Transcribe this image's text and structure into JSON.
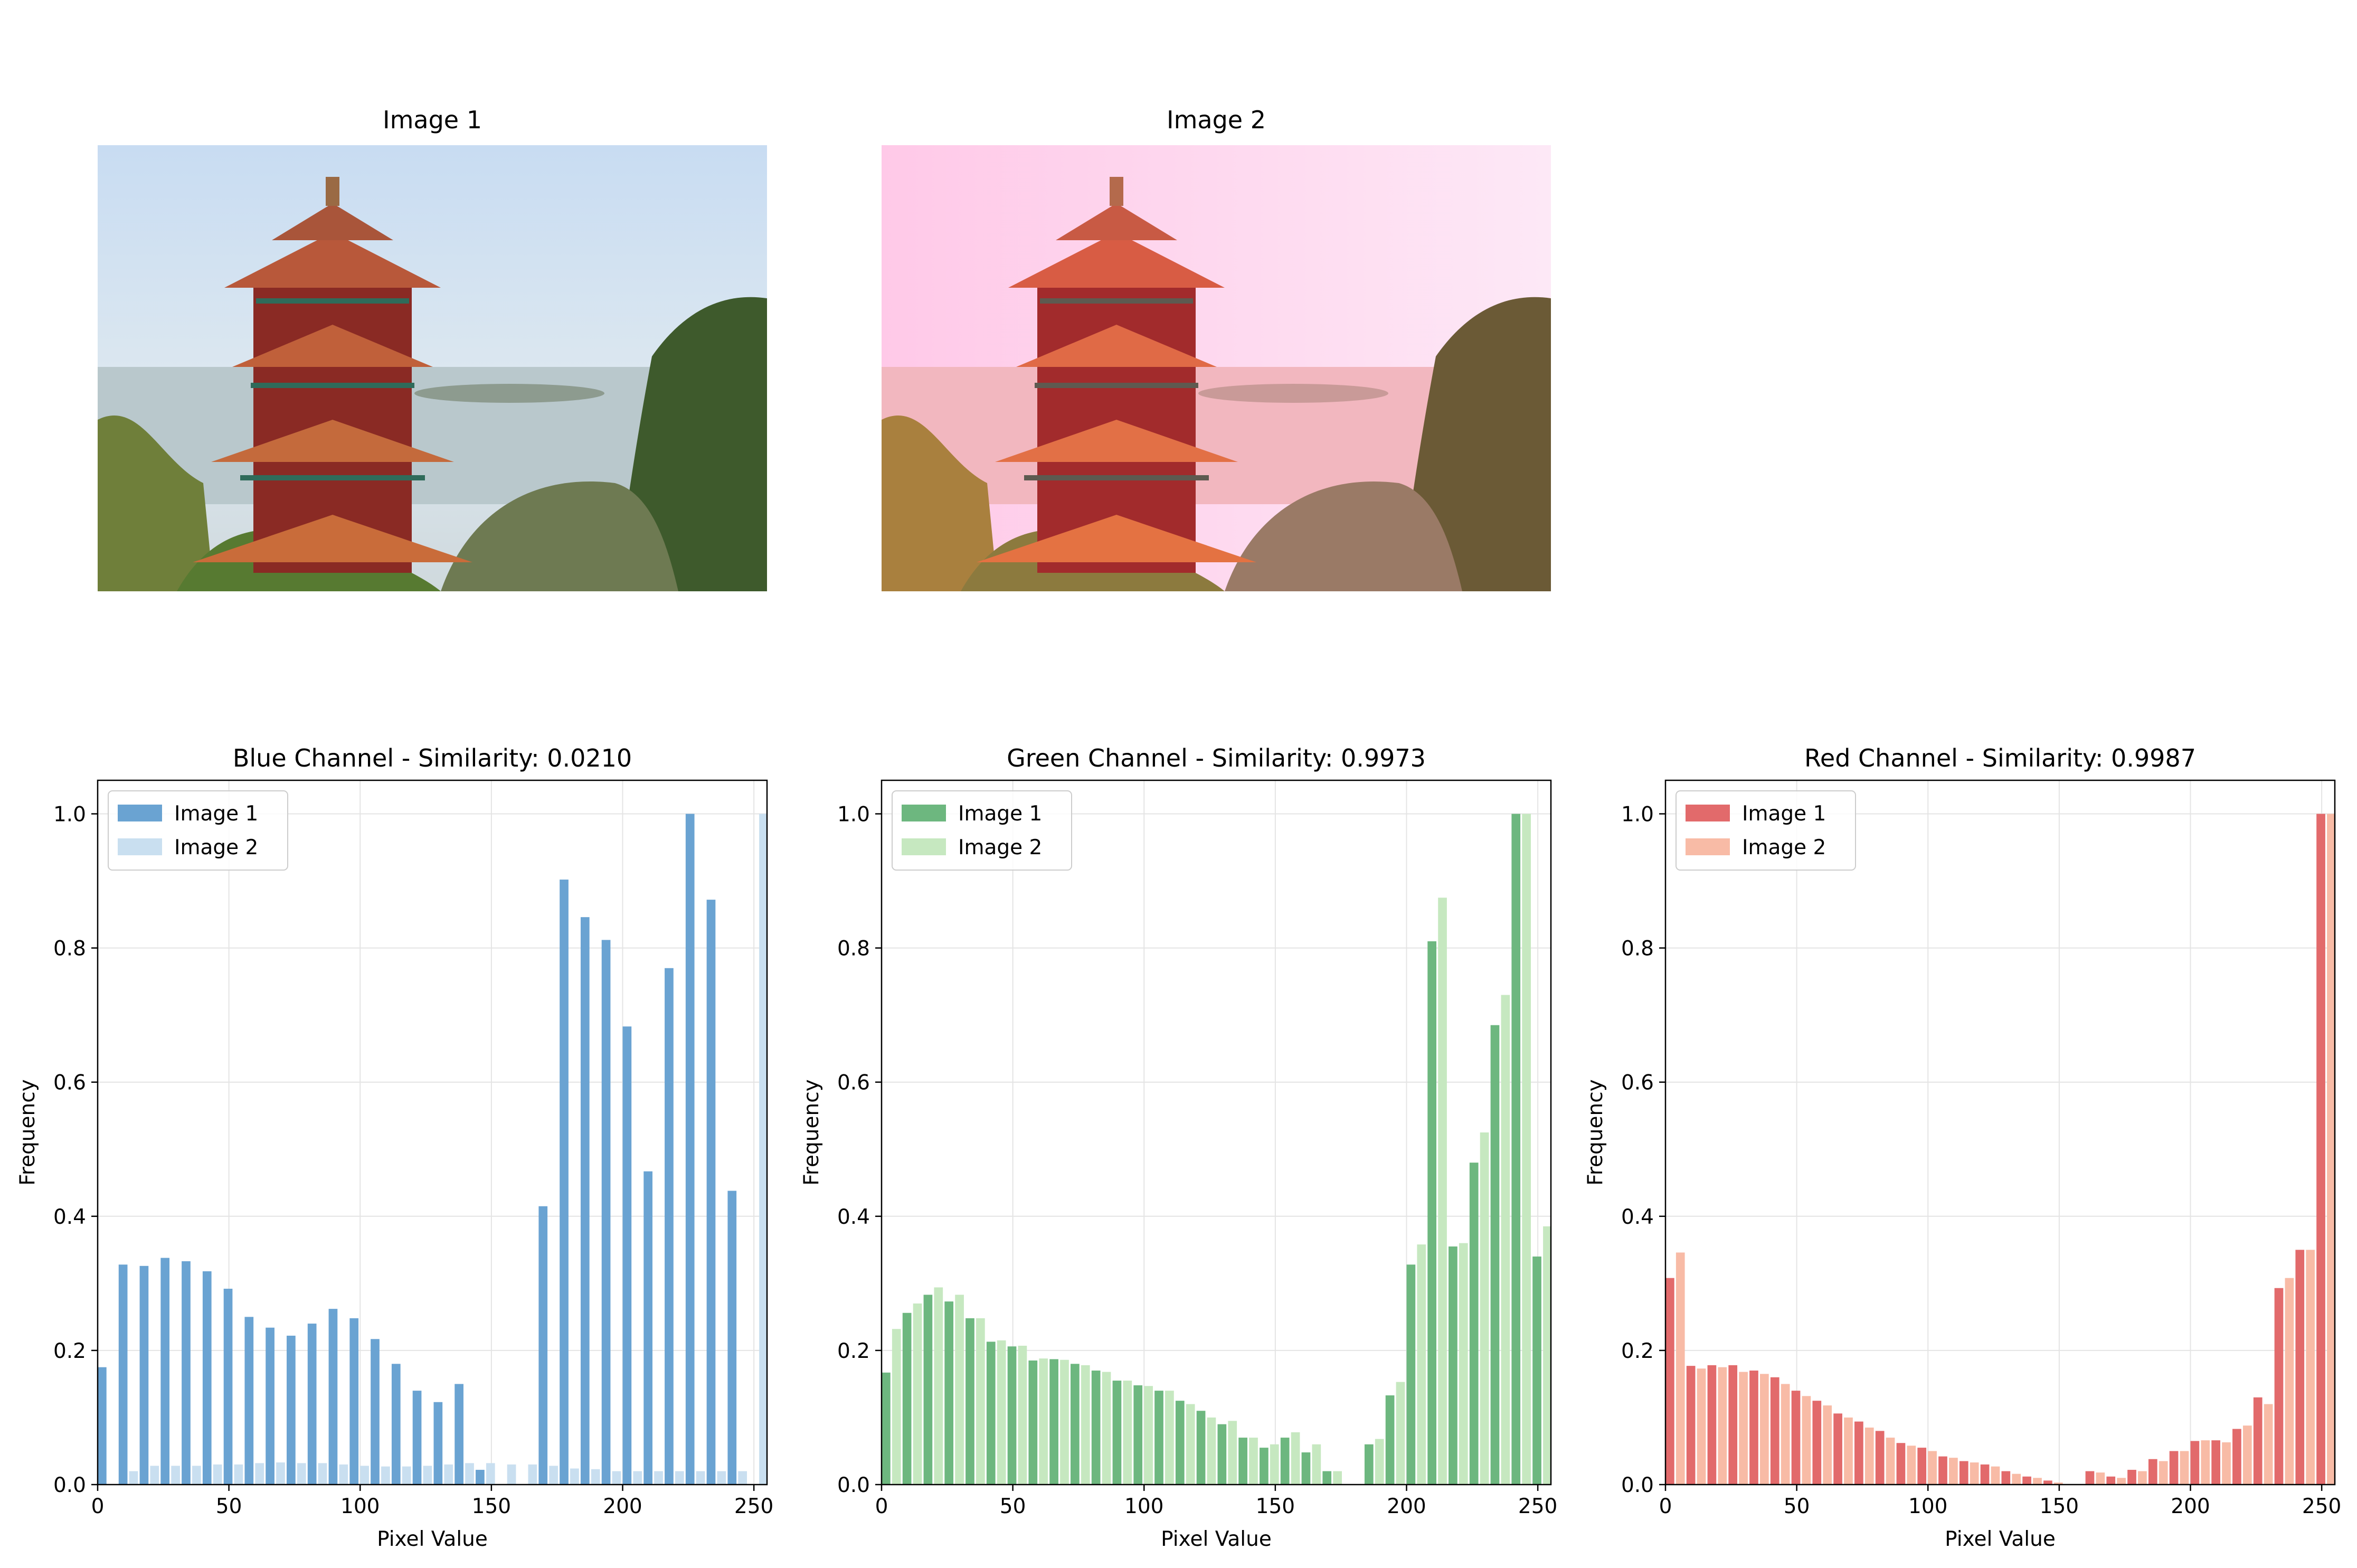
{
  "images": [
    {
      "title": "Image 1",
      "tint": "#d6e6f7"
    },
    {
      "title": "Image 2",
      "tint": "#ffc9e3"
    }
  ],
  "colors": {
    "blue_1": "#6aa3d2",
    "blue_2": "#c9dff0",
    "green_1": "#6db77f",
    "green_2": "#c6e8c0",
    "red_1": "#e26a6b",
    "red_2": "#f8bba6"
  },
  "chart_data": [
    {
      "type": "bar",
      "title": "Blue Channel - Similarity: 0.0210",
      "xlabel": "Pixel Value",
      "ylabel": "Frequency",
      "xlim": [
        0,
        255
      ],
      "ylim": [
        0,
        1.05
      ],
      "xticks": [
        "0",
        "50",
        "100",
        "150",
        "200",
        "250"
      ],
      "yticks": [
        "0.0",
        "0.2",
        "0.4",
        "0.6",
        "0.8",
        "1.0"
      ],
      "grid": true,
      "legend": "upper-left",
      "bin_width": 8,
      "x": [
        0,
        8,
        16,
        24,
        32,
        40,
        48,
        56,
        64,
        72,
        80,
        88,
        96,
        104,
        112,
        120,
        128,
        136,
        144,
        152,
        160,
        168,
        176,
        184,
        192,
        200,
        208,
        216,
        224,
        232,
        240,
        248
      ],
      "series": [
        {
          "name": "Image 1",
          "color": "#6aa3d2",
          "values": [
            0.175,
            0.328,
            0.326,
            0.338,
            0.333,
            0.318,
            0.292,
            0.25,
            0.234,
            0.222,
            0.24,
            0.262,
            0.248,
            0.217,
            0.18,
            0.14,
            0.123,
            0.15,
            0.022,
            0,
            0,
            0.415,
            0.902,
            0.846,
            0.812,
            0.683,
            0.467,
            0.77,
            1.0,
            0.872,
            0.438,
            0
          ]
        },
        {
          "name": "Image 2",
          "color": "#c9dff0",
          "values": [
            0,
            0.02,
            0.028,
            0.028,
            0.028,
            0.03,
            0.03,
            0.032,
            0.033,
            0.032,
            0.032,
            0.03,
            0.028,
            0.027,
            0.027,
            0.028,
            0.03,
            0.032,
            0.032,
            0.03,
            0.03,
            0.028,
            0.024,
            0.023,
            0.02,
            0.02,
            0.02,
            0.02,
            0.02,
            0.02,
            0.02,
            1.0
          ]
        }
      ]
    },
    {
      "type": "bar",
      "title": "Green Channel - Similarity: 0.9973",
      "xlabel": "Pixel Value",
      "ylabel": "Frequency",
      "xlim": [
        0,
        255
      ],
      "ylim": [
        0,
        1.05
      ],
      "xticks": [
        "0",
        "50",
        "100",
        "150",
        "200",
        "250"
      ],
      "yticks": [
        "0.0",
        "0.2",
        "0.4",
        "0.6",
        "0.8",
        "1.0"
      ],
      "grid": true,
      "legend": "upper-left",
      "bin_width": 8,
      "x": [
        0,
        8,
        16,
        24,
        32,
        40,
        48,
        56,
        64,
        72,
        80,
        88,
        96,
        104,
        112,
        120,
        128,
        136,
        144,
        152,
        160,
        168,
        176,
        184,
        192,
        200,
        208,
        216,
        224,
        232,
        240,
        248
      ],
      "series": [
        {
          "name": "Image 1",
          "color": "#6db77f",
          "values": [
            0.167,
            0.256,
            0.283,
            0.273,
            0.248,
            0.213,
            0.206,
            0.185,
            0.187,
            0.18,
            0.17,
            0.155,
            0.148,
            0.14,
            0.125,
            0.11,
            0.09,
            0.07,
            0.055,
            0.07,
            0.048,
            0.02,
            0,
            0.06,
            0.133,
            0.328,
            0.81,
            0.355,
            0.48,
            0.685,
            1.0,
            0.34
          ]
        },
        {
          "name": "Image 2",
          "color": "#c6e8c0",
          "values": [
            0.232,
            0.27,
            0.294,
            0.283,
            0.248,
            0.215,
            0.207,
            0.188,
            0.186,
            0.178,
            0.168,
            0.155,
            0.147,
            0.14,
            0.12,
            0.1,
            0.095,
            0.07,
            0.06,
            0.078,
            0.06,
            0.02,
            0,
            0.068,
            0.153,
            0.358,
            0.875,
            0.36,
            0.525,
            0.73,
            1.0,
            0.385
          ]
        }
      ]
    },
    {
      "type": "bar",
      "title": "Red Channel - Similarity: 0.9987",
      "xlabel": "Pixel Value",
      "ylabel": "Frequency",
      "xlim": [
        0,
        255
      ],
      "ylim": [
        0,
        1.05
      ],
      "xticks": [
        "0",
        "50",
        "100",
        "150",
        "200",
        "250"
      ],
      "yticks": [
        "0.0",
        "0.2",
        "0.4",
        "0.6",
        "0.8",
        "1.0"
      ],
      "grid": true,
      "legend": "upper-left",
      "bin_width": 8,
      "x": [
        0,
        8,
        16,
        24,
        32,
        40,
        48,
        56,
        64,
        72,
        80,
        88,
        96,
        104,
        112,
        120,
        128,
        136,
        144,
        152,
        160,
        168,
        176,
        184,
        192,
        200,
        208,
        216,
        224,
        232,
        240,
        248
      ],
      "series": [
        {
          "name": "Image 1",
          "color": "#e26a6b",
          "values": [
            0.308,
            0.177,
            0.178,
            0.178,
            0.17,
            0.16,
            0.14,
            0.125,
            0.106,
            0.094,
            0.08,
            0.062,
            0.055,
            0.042,
            0.035,
            0.03,
            0.02,
            0.012,
            0.006,
            0,
            0.02,
            0.012,
            0.022,
            0.038,
            0.05,
            0.065,
            0.066,
            0.083,
            0.13,
            0.293,
            0.35,
            1.0
          ]
        },
        {
          "name": "Image 2",
          "color": "#f8bba6",
          "values": [
            0.346,
            0.173,
            0.175,
            0.168,
            0.165,
            0.15,
            0.132,
            0.118,
            0.1,
            0.085,
            0.07,
            0.058,
            0.05,
            0.04,
            0.033,
            0.027,
            0.016,
            0.01,
            0.003,
            0,
            0.018,
            0.01,
            0.02,
            0.035,
            0.05,
            0.066,
            0.063,
            0.088,
            0.12,
            0.308,
            0.35,
            1.0
          ]
        }
      ]
    }
  ]
}
